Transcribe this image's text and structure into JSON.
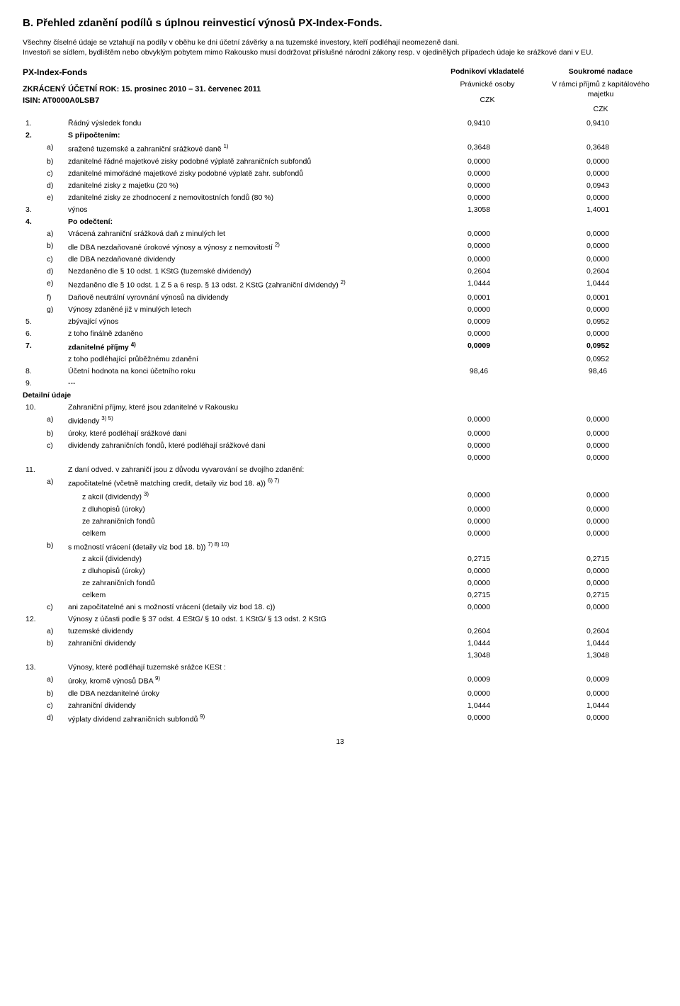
{
  "title": "B. Přehled zdanění podílů s úplnou reinvesticí výnosů PX-Index-Fonds.",
  "intro1": "Všechny číselné údaje se vztahují na podíly v oběhu ke dni účetní závěrky a na tuzemské investory, kteří podléhají neomezeně dani.",
  "intro2": "Investoři se sídlem, bydlištěm nebo obvyklým pobytem mimo Rakousko musí dodržovat příslušné národní zákony resp. v ojedinělých případech údaje ke srážkové dani v EU.",
  "fund": {
    "name": "PX-Index-Fonds",
    "period_line": "ZKRÁCENÝ ÚČETNÍ ROK: 15. prosinec 2010 – 31. červenec 2011",
    "isin_line": "ISIN: AT0000A0LSB7"
  },
  "cols": {
    "c1_top": "Podnikoví vkladatelé",
    "c1_sub": "Právnické osoby",
    "c2_top": "Soukromé nadace",
    "c2_sub": "V rámci příjmů z kapitálového majetku",
    "czk": "CZK"
  },
  "rows": [
    {
      "idx": "1.",
      "sub": "",
      "label": "Řádný výsledek fondu",
      "v1": "0,9410",
      "v2": "0,9410",
      "bold": false
    },
    {
      "idx": "2.",
      "sub": "",
      "label": "S připočtením:",
      "v1": "",
      "v2": "",
      "bold": true
    },
    {
      "idx": "",
      "sub": "a)",
      "label": "sražené tuzemské a zahraniční srážkové daně 1)",
      "v1": "0,3648",
      "v2": "0,3648",
      "bold": false,
      "sup": true
    },
    {
      "idx": "",
      "sub": "b)",
      "label": "zdanitelné řádné majetkové zisky podobné výplatě zahraničních subfondů",
      "v1": "0,0000",
      "v2": "0,0000",
      "bold": false
    },
    {
      "idx": "",
      "sub": "c)",
      "label": "zdanitelné mimořádné majetkové zisky podobné výplatě zahr. subfondů",
      "v1": "0,0000",
      "v2": "0,0000",
      "bold": false
    },
    {
      "idx": "",
      "sub": "d)",
      "label": "zdanitelné zisky z majetku (20 %)",
      "v1": "0,0000",
      "v2": "0,0943",
      "bold": false
    },
    {
      "idx": "",
      "sub": "e)",
      "label": "zdanitelné zisky ze zhodnocení z nemovitostních fondů (80 %)",
      "v1": "0,0000",
      "v2": "0,0000",
      "bold": false
    },
    {
      "idx": "3.",
      "sub": "",
      "label": "výnos",
      "v1": "1,3058",
      "v2": "1,4001",
      "bold": false
    },
    {
      "idx": "4.",
      "sub": "",
      "label": "Po odečtení:",
      "v1": "",
      "v2": "",
      "bold": true
    },
    {
      "idx": "",
      "sub": "a)",
      "label": "Vrácená zahraniční srážková daň z minulých let",
      "v1": "0,0000",
      "v2": "0,0000",
      "bold": false
    },
    {
      "idx": "",
      "sub": "b)",
      "label": "dle DBA nezdaňované úrokové výnosy a výnosy z nemovitostí 2)",
      "v1": "0,0000",
      "v2": "0,0000",
      "bold": false,
      "sup": true
    },
    {
      "idx": "",
      "sub": "c)",
      "label": "dle DBA nezdaňované dividendy",
      "v1": "0,0000",
      "v2": "0,0000",
      "bold": false
    },
    {
      "idx": "",
      "sub": "d)",
      "label": "Nezdaněno dle § 10 odst. 1 KStG (tuzemské dividendy)",
      "v1": "0,2604",
      "v2": "0,2604",
      "bold": false
    },
    {
      "idx": "",
      "sub": "e)",
      "label": "Nezdaněno dle § 10 odst. 1 Z  5 a 6 resp. § 13 odst. 2 KStG (zahraniční dividendy) 2)",
      "v1": "1,0444",
      "v2": "1,0444",
      "bold": false,
      "sup": true
    },
    {
      "idx": "",
      "sub": "f)",
      "label": "Daňově neutrální vyrovnání výnosů na dividendy",
      "v1": "0,0001",
      "v2": "0,0001",
      "bold": false
    },
    {
      "idx": "",
      "sub": "g)",
      "label": "Výnosy zdaněné již v minulých letech",
      "v1": "0,0000",
      "v2": "0,0000",
      "bold": false
    },
    {
      "idx": "5.",
      "sub": "",
      "label": "zbývající výnos",
      "v1": "0,0009",
      "v2": "0,0952",
      "bold": false
    },
    {
      "idx": "6.",
      "sub": "",
      "label": "z toho finálně zdaněno",
      "v1": "0,0000",
      "v2": "0,0000",
      "bold": false
    },
    {
      "idx": "7.",
      "sub": "",
      "label": "zdanitelné příjmy 4)",
      "v1": "0,0009",
      "v2": "0,0952",
      "bold": true,
      "sup": true
    },
    {
      "idx": "",
      "sub": "",
      "label": "z toho podléhající průběžnému zdanění",
      "v1": "",
      "v2": "0,0952",
      "bold": false
    },
    {
      "idx": "8.",
      "sub": "",
      "label": "Účetní hodnota na konci účetního roku",
      "v1": "98,46",
      "v2": "98,46",
      "bold": false
    },
    {
      "idx": "9.",
      "sub": "",
      "label": "---",
      "v1": "",
      "v2": "",
      "bold": false
    },
    {
      "idx": "",
      "sub": "",
      "label": "Detailní údaje",
      "v1": "",
      "v2": "",
      "bold": true,
      "fullrow": true
    },
    {
      "idx": "10.",
      "sub": "",
      "label": "Zahraniční příjmy, které jsou zdanitelné v Rakousku",
      "v1": "",
      "v2": "",
      "bold": false
    },
    {
      "idx": "",
      "sub": "a)",
      "label": "dividendy 3) 5)",
      "v1": "0,0000",
      "v2": "0,0000",
      "bold": false,
      "sup": true
    },
    {
      "idx": "",
      "sub": "b)",
      "label": "úroky, které podléhají srážkové dani",
      "v1": "0,0000",
      "v2": "0,0000",
      "bold": false
    },
    {
      "idx": "",
      "sub": "c)",
      "label": "dividendy zahraničních fondů, které podléhají srážkové dani",
      "v1": "0,0000",
      "v2": "0,0000",
      "bold": false
    },
    {
      "idx": "",
      "sub": "",
      "label": "",
      "v1": "0,0000",
      "v2": "0,0000",
      "bold": false
    },
    {
      "idx": "11.",
      "sub": "",
      "label": "Z daní odved. v zahraničí jsou z důvodu vyvarování se dvojího zdanění:",
      "v1": "",
      "v2": "",
      "bold": false
    },
    {
      "idx": "",
      "sub": "a)",
      "label": "započitatelné (včetně matching credit, detaily viz bod 18. a)) 6) 7)",
      "v1": "",
      "v2": "",
      "bold": false,
      "sup": true
    },
    {
      "idx": "",
      "sub": "",
      "label": "z akcií (dividendy) 3)",
      "v1": "0,0000",
      "v2": "0,0000",
      "bold": false,
      "indent": true,
      "sup": true
    },
    {
      "idx": "",
      "sub": "",
      "label": "z dluhopisů (úroky)",
      "v1": "0,0000",
      "v2": "0,0000",
      "bold": false,
      "indent": true
    },
    {
      "idx": "",
      "sub": "",
      "label": "ze zahraničních  fondů",
      "v1": "0,0000",
      "v2": "0,0000",
      "bold": false,
      "indent": true
    },
    {
      "idx": "",
      "sub": "",
      "label": "celkem",
      "v1": "0,0000",
      "v2": "0,0000",
      "bold": false,
      "indent": true
    },
    {
      "idx": "",
      "sub": "b)",
      "label": "s možností vrácení (detaily viz bod 18. b)) 7) 8) 10)",
      "v1": "",
      "v2": "",
      "bold": false,
      "sup": true
    },
    {
      "idx": "",
      "sub": "",
      "label": "z akcií (dividendy)",
      "v1": "0,2715",
      "v2": "0,2715",
      "bold": false,
      "indent": true
    },
    {
      "idx": "",
      "sub": "",
      "label": "z dluhopisů (úroky)",
      "v1": "0,0000",
      "v2": "0,0000",
      "bold": false,
      "indent": true
    },
    {
      "idx": "",
      "sub": "",
      "label": "ze zahraničních  fondů",
      "v1": "0,0000",
      "v2": "0,0000",
      "bold": false,
      "indent": true
    },
    {
      "idx": "",
      "sub": "",
      "label": "celkem",
      "v1": "0,2715",
      "v2": "0,2715",
      "bold": false,
      "indent": true
    },
    {
      "idx": "",
      "sub": "c)",
      "label": "ani započitatelné ani s možností vrácení (detaily viz bod 18. c))",
      "v1": "0,0000",
      "v2": "0,0000",
      "bold": false
    },
    {
      "idx": "12.",
      "sub": "",
      "label": "Výnosy z účasti podle § 37 odst. 4 EStG/ § 10 odst. 1 KStG/ § 13 odst. 2 KStG",
      "v1": "",
      "v2": "",
      "bold": false
    },
    {
      "idx": "",
      "sub": "a)",
      "label": "tuzemské dividendy",
      "v1": "0,2604",
      "v2": "0,2604",
      "bold": false
    },
    {
      "idx": "",
      "sub": "b)",
      "label": "zahraniční dividendy",
      "v1": "1,0444",
      "v2": "1,0444",
      "bold": false
    },
    {
      "idx": "",
      "sub": "",
      "label": "",
      "v1": "1,3048",
      "v2": "1,3048",
      "bold": false
    },
    {
      "idx": "13.",
      "sub": "",
      "label": "Výnosy, které podléhají tuzemské srážce KESt :",
      "v1": "",
      "v2": "",
      "bold": false
    },
    {
      "idx": "",
      "sub": "a)",
      "label": "úroky, kromě výnosů DBA 9)",
      "v1": "0,0009",
      "v2": "0,0009",
      "bold": false,
      "sup": true
    },
    {
      "idx": "",
      "sub": "b)",
      "label": "dle DBA  nezdanitelné úroky",
      "v1": "0,0000",
      "v2": "0,0000",
      "bold": false
    },
    {
      "idx": "",
      "sub": "c)",
      "label": "zahraniční dividendy",
      "v1": "1,0444",
      "v2": "1,0444",
      "bold": false
    },
    {
      "idx": "",
      "sub": "d)",
      "label": "výplaty dividend zahraničních subfondů 9)",
      "v1": "0,0000",
      "v2": "0,0000",
      "bold": false,
      "sup": true
    }
  ],
  "pagenum": "13"
}
